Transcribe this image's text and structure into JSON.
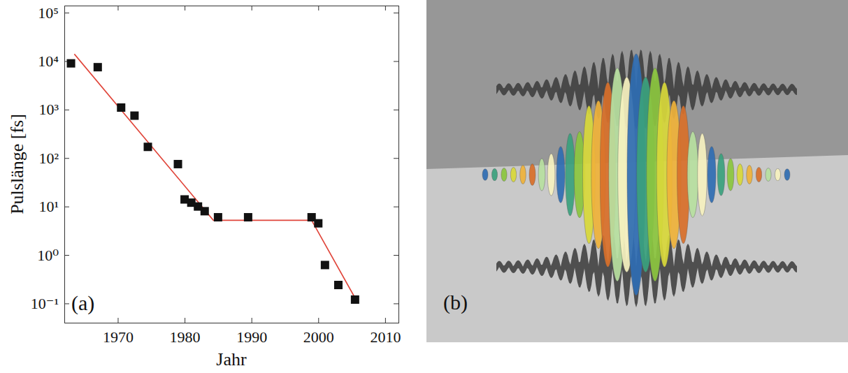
{
  "chart_data": [
    {
      "type": "scatter",
      "annotation": "(a)",
      "x_label": "Jahr",
      "y_label": "Pulslänge [fs]",
      "log": "y",
      "xlim": [
        1962,
        2012
      ],
      "ylim": [
        0.04,
        140000
      ],
      "xticks": [
        1970,
        1980,
        1990,
        2000,
        2010
      ],
      "yticks": [
        {
          "value": 0.1,
          "label": "10⁻¹"
        },
        {
          "value": 1,
          "label": "10⁰"
        },
        {
          "value": 10,
          "label": "10¹"
        },
        {
          "value": 100,
          "label": "10²"
        },
        {
          "value": 1000,
          "label": "10³"
        },
        {
          "value": 10000,
          "label": "10⁴"
        },
        {
          "value": 100000,
          "label": "10⁵"
        }
      ],
      "series": [
        {
          "type": "scatter",
          "marker": "square",
          "color": "#111111",
          "x": [
            1963,
            1967,
            1970.5,
            1972.5,
            1974.5,
            1979,
            1980,
            1981,
            1982,
            1983,
            1985,
            1989.5,
            1999,
            2000,
            2001,
            2003,
            2005.5
          ],
          "values": [
            9000,
            7500,
            1100,
            750,
            170,
            75,
            14,
            12,
            10,
            8,
            6,
            6,
            6,
            4.5,
            0.62,
            0.24,
            0.12
          ]
        },
        {
          "type": "line",
          "color": "#e0453a",
          "x": [
            1963.5,
            1984.3,
            1999,
            2005.5
          ],
          "values": [
            14000,
            5.2,
            5.2,
            0.13
          ]
        }
      ]
    },
    {
      "type": "image",
      "annotation": "(b)"
    }
  ]
}
